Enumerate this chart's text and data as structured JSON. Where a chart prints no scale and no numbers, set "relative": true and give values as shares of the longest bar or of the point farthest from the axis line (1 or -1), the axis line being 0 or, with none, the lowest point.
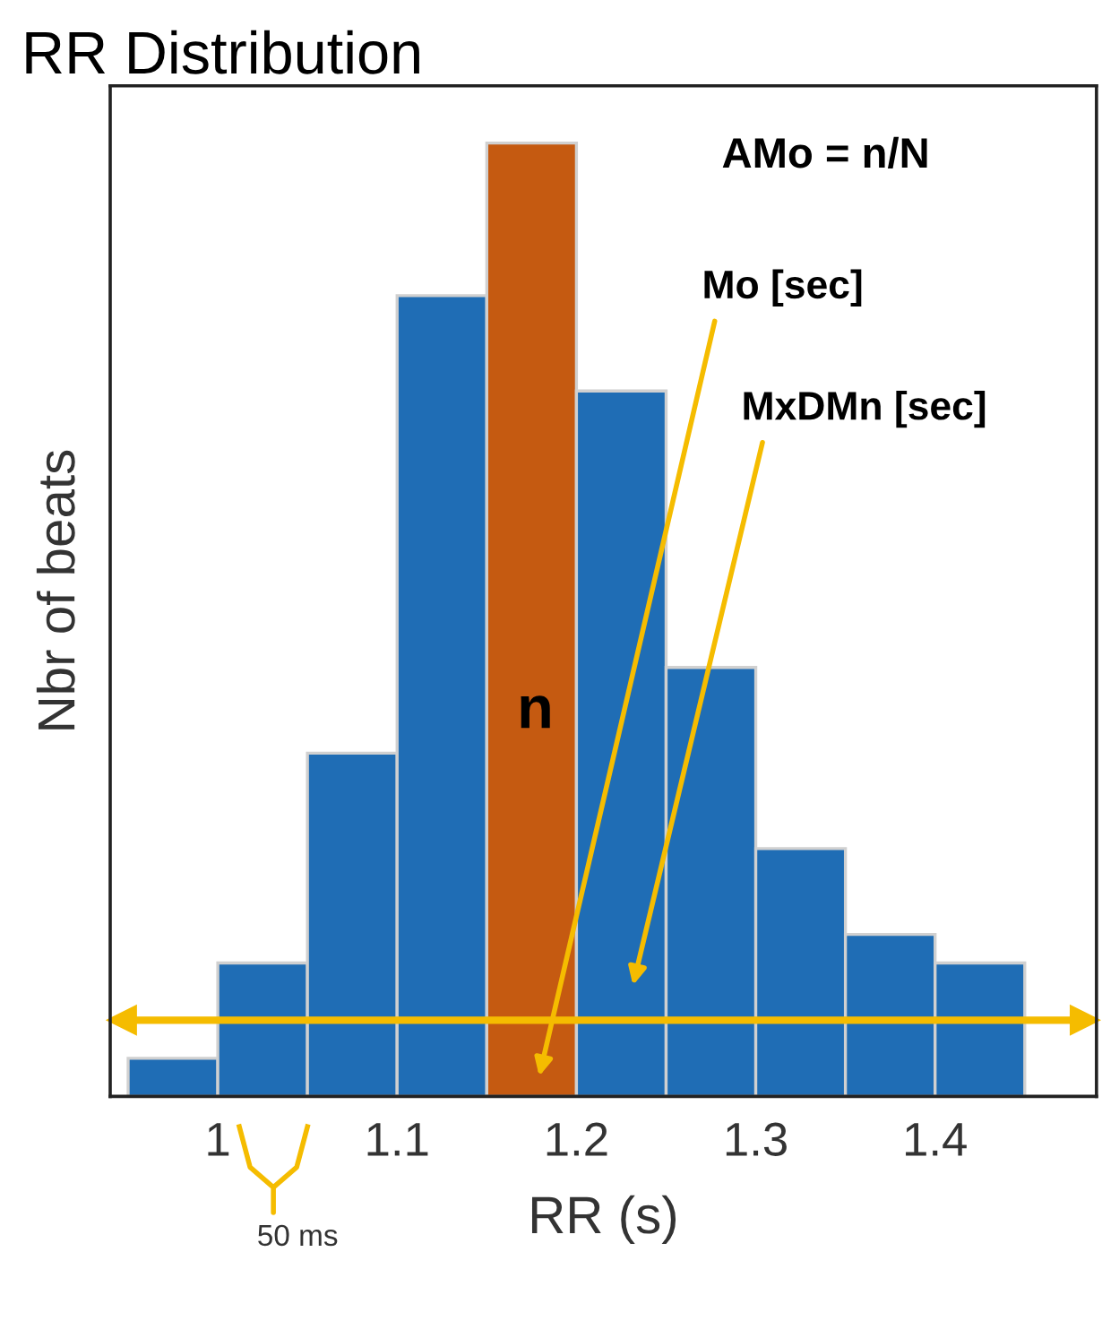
{
  "chart_data": {
    "type": "bar",
    "title": "RR Distribution",
    "xlabel": "RR (s)",
    "ylabel": "Nbr of beats",
    "x": [
      0.975,
      1.025,
      1.075,
      1.125,
      1.175,
      1.225,
      1.275,
      1.325,
      1.375,
      1.425
    ],
    "values": [
      0.04,
      0.14,
      0.36,
      0.84,
      1,
      0.74,
      0.45,
      0.26,
      0.17,
      0.14
    ],
    "colors": [
      "#1f6db5",
      "#1f6db5",
      "#1f6db5",
      "#1f6db5",
      "#c55a11",
      "#1f6db5",
      "#1f6db5",
      "#1f6db5",
      "#1f6db5",
      "#1f6db5"
    ],
    "relative": true,
    "xlim": [
      0.94,
      1.49
    ],
    "xticks": [
      1,
      1.1,
      1.2,
      1.3,
      1.4
    ],
    "ref_lines": [
      {
        "axis": "y",
        "value": 0.08,
        "color": "#f5bc00"
      }
    ],
    "annotations": [
      {
        "text": "AMo = n/N"
      },
      "n",
      "Mo [sec]",
      "MxDMn [sec]",
      {
        "text": "50 ms"
      }
    ],
    "grid": false,
    "legend": false
  }
}
